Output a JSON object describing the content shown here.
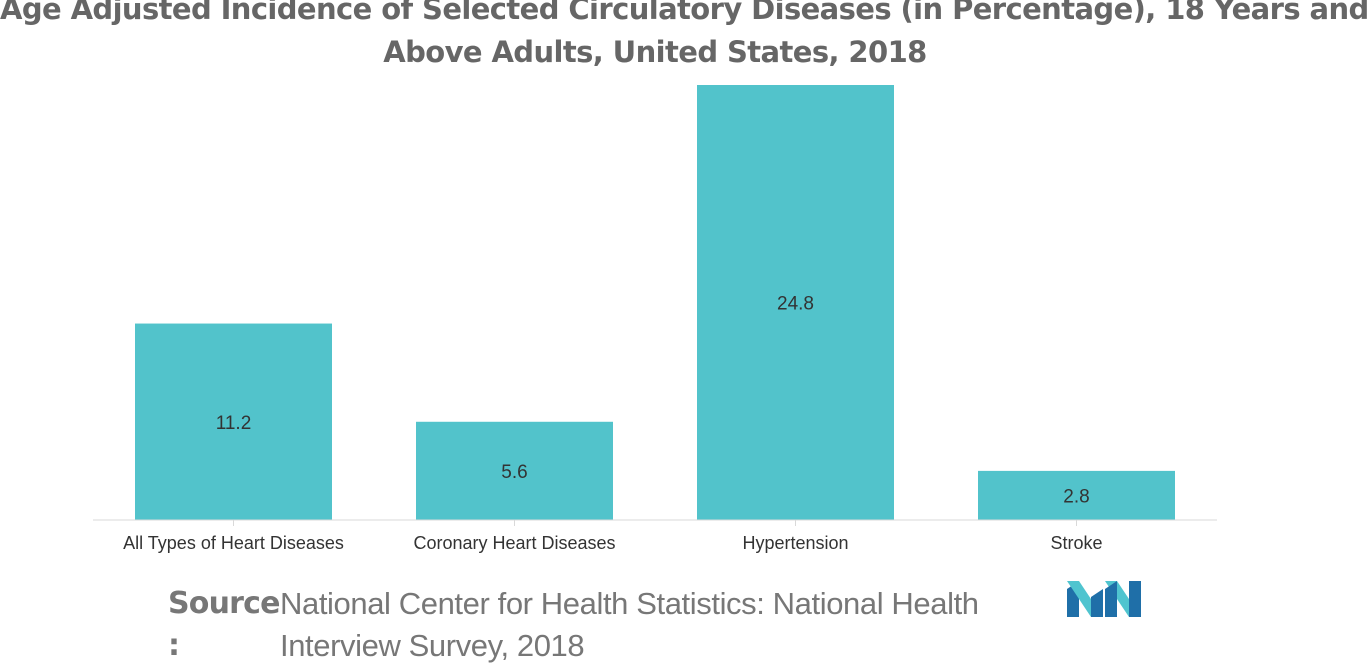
{
  "chart_data": {
    "type": "bar",
    "title_lines": [
      "Age Adjusted Incidence of Selected Circulatory Diseases (in Percentage), 18 Years and",
      "Above Adults, United States, 2018"
    ],
    "categories": [
      "All Types of Heart Diseases",
      "Coronary Heart Diseases",
      "Hypertension",
      "Stroke"
    ],
    "values": [
      11.2,
      5.6,
      24.8,
      2.8
    ],
    "data_labels": [
      "11.2",
      "5.6",
      "24.8",
      "2.8"
    ],
    "xlabel": "",
    "ylabel": "",
    "ylim": [
      0,
      24.8
    ],
    "grid": false,
    "legend": "none",
    "bar_color": "#52C3CB",
    "axis_color": "#D9D9D9"
  },
  "source": {
    "label": "Source",
    "colon": ":",
    "text": "National Center for Health Statistics: National Health Interview Survey, 2018"
  },
  "logo": {
    "icon": "mordor-intelligence-logo",
    "colors": [
      "#1F6FA8",
      "#4FC4CF"
    ]
  }
}
